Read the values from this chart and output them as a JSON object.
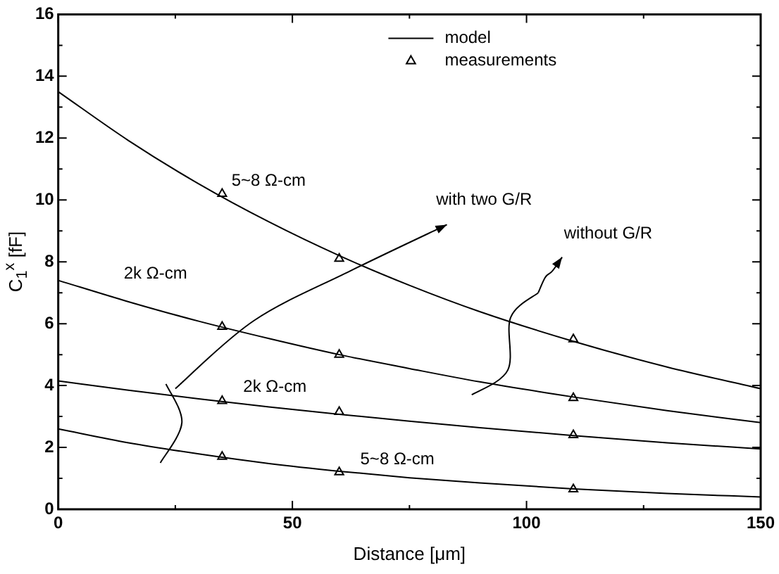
{
  "chart_data": {
    "type": "line",
    "xlabel": "Distance [μm]",
    "ylabel": "C$_{1}$$^{x}$ [fF]",
    "xlim": [
      0,
      150
    ],
    "xticks": [
      0,
      {
        "value": 25,
        "label": null
      },
      50,
      {
        "value": 75,
        "label": null
      },
      100,
      {
        "value": 125,
        "label": null
      },
      150
    ],
    "ylim": [
      0,
      16
    ],
    "yticks": [
      0,
      {
        "value": 1,
        "label": null
      },
      2,
      {
        "value": 3,
        "label": null
      },
      4,
      {
        "value": 5,
        "label": null
      },
      6,
      {
        "value": 7,
        "label": null
      },
      8,
      {
        "value": 9,
        "label": null
      },
      10,
      {
        "value": 11,
        "label": null
      },
      12,
      {
        "value": 13,
        "label": null
      },
      14,
      {
        "value": 15,
        "label": null
      },
      16
    ],
    "grid": false,
    "legend": "top",
    "line_style": "solid",
    "series": [
      {
        "name": "model",
        "marker": "none",
        "color": "#000000",
        "x": [
          0,
          15,
          30,
          45,
          60,
          75,
          90,
          110,
          130,
          150
        ],
        "values": [
          13.5,
          11.92,
          10.52,
          9.29,
          8.2,
          7.24,
          6.39,
          5.43,
          4.6,
          3.9
        ]
      },
      {
        "marker": "none",
        "color": "#000000",
        "x": [
          0,
          15,
          30,
          45,
          60,
          75,
          90,
          110,
          130,
          150
        ],
        "values": [
          7.4,
          6.71,
          6.08,
          5.52,
          5.0,
          4.55,
          4.12,
          3.63,
          3.19,
          2.8
        ]
      },
      {
        "marker": "none",
        "color": "#000000",
        "x": [
          0,
          15,
          30,
          45,
          60,
          75,
          90,
          110,
          130,
          150
        ],
        "values": [
          4.15,
          3.85,
          3.57,
          3.31,
          3.07,
          2.85,
          2.64,
          2.38,
          2.15,
          1.95
        ]
      },
      {
        "marker": "none",
        "color": "#000000",
        "x": [
          0,
          15,
          30,
          45,
          60,
          75,
          90,
          110,
          130,
          150
        ],
        "values": [
          2.6,
          2.15,
          1.79,
          1.48,
          1.23,
          1.02,
          0.85,
          0.66,
          0.51,
          0.4
        ]
      },
      {
        "name": "measurements",
        "type": "scatter",
        "marker": "triangle",
        "color": "#000000",
        "x": [
          35,
          60,
          110,
          35,
          60,
          110,
          35,
          60,
          110,
          35,
          60,
          110
        ],
        "values": [
          10.2,
          8.1,
          5.5,
          5.9,
          5.0,
          3.6,
          3.5,
          3.15,
          2.4,
          1.7,
          1.2,
          0.65
        ]
      }
    ],
    "annotations": [
      "5~8 Ω-cm",
      "2k Ω-cm",
      "2k Ω-cm",
      "5~8 Ω-cm",
      "with two G/R",
      "without G/R"
    ]
  }
}
